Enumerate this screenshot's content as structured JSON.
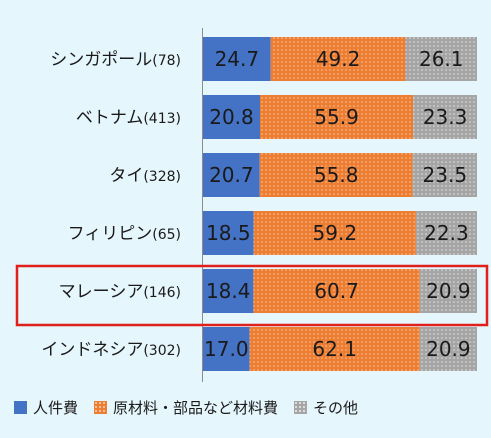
{
  "chart_data": {
    "type": "bar",
    "orientation": "horizontal",
    "stacked": "percent",
    "categories": [
      {
        "name": "シンガポール",
        "count": "(78)"
      },
      {
        "name": "ベトナム",
        "count": "(413)"
      },
      {
        "name": "タイ",
        "count": "(328)"
      },
      {
        "name": "フィリピン",
        "count": "(65)"
      },
      {
        "name": "マレーシア",
        "count": "(146)"
      },
      {
        "name": "インドネシア",
        "count": "(302)"
      }
    ],
    "series": [
      {
        "name": "人件費",
        "values": [
          24.7,
          20.8,
          20.7,
          18.5,
          18.4,
          17.0
        ],
        "labels": [
          "24.7",
          "20.8",
          "20.7",
          "18.5",
          "18.4",
          "17.0"
        ]
      },
      {
        "name": "原材料・部品など材料費",
        "values": [
          49.2,
          55.9,
          55.8,
          59.2,
          60.7,
          62.1
        ],
        "labels": [
          "49.2",
          "55.9",
          "55.8",
          "59.2",
          "60.7",
          "62.1"
        ]
      },
      {
        "name": "その他",
        "values": [
          26.1,
          23.3,
          23.5,
          22.3,
          20.9,
          20.9
        ],
        "labels": [
          "26.1",
          "23.3",
          "23.5",
          "22.3",
          "20.9",
          "20.9"
        ]
      }
    ],
    "highlighted_category": "マレーシア",
    "legend_position": "bottom",
    "colors": {
      "series": [
        "#4472c4",
        "#ed7d31",
        "#a5a5a5"
      ],
      "highlight_box": "#e0201b",
      "background": "#e6f6fd"
    },
    "title": "",
    "xlabel": "",
    "ylabel": "",
    "xlim": [
      0,
      100
    ]
  }
}
